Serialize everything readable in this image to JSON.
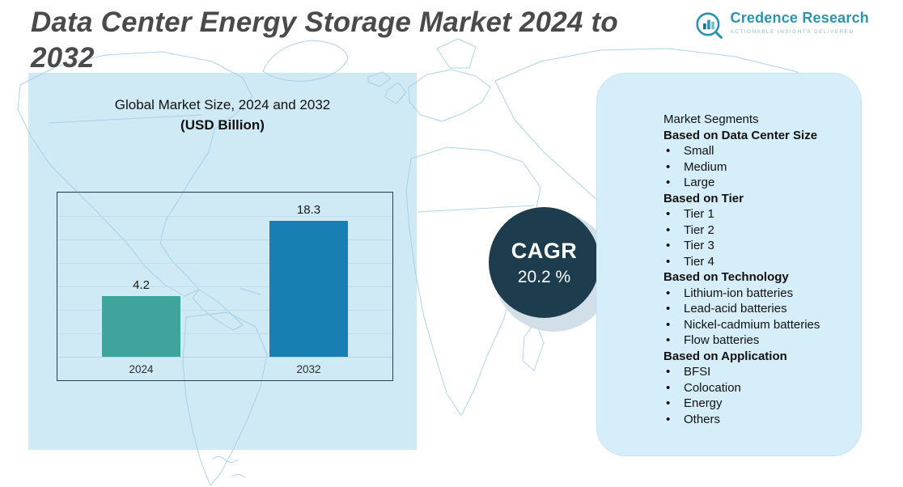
{
  "header": {
    "title": "Data Center Energy Storage Market 2024 to 2032"
  },
  "logo": {
    "name": "Credence Research",
    "tagline": "Actionable Insights Delivered"
  },
  "chart_panel": {
    "title": "Global Market Size, 2024 and 2032",
    "subtitle": "(USD Billion)"
  },
  "chart_data": {
    "type": "bar",
    "title": "Global Market Size, 2024 and 2032",
    "units": "USD Billion",
    "categories": [
      "2024",
      "2032"
    ],
    "values": [
      4.2,
      18.3
    ],
    "ylim": [
      0,
      20
    ],
    "grid": true,
    "legend": "none",
    "colors": [
      "#3fa39e",
      "#177fb2"
    ]
  },
  "cagr": {
    "label": "CAGR",
    "value": "20.2 %"
  },
  "segments": {
    "title": "Market Segments",
    "groups": [
      {
        "heading": "Based on Data Center Size",
        "items": [
          "Small",
          "Medium",
          "Large"
        ]
      },
      {
        "heading": "Based on Tier",
        "items": [
          "Tier 1",
          "Tier 2",
          "Tier 3",
          "Tier 4"
        ]
      },
      {
        "heading": "Based on Technology",
        "items": [
          "Lithium-ion batteries",
          "Lead-acid batteries",
          "Nickel-cadmium batteries",
          "Flow batteries"
        ]
      },
      {
        "heading": "Based on Application",
        "items": [
          "BFSI",
          "Colocation",
          "Energy",
          "Others"
        ]
      }
    ]
  },
  "colors": {
    "left_panel": "#cfe9f5",
    "right_panel": "#d6eef9",
    "cagr_circle": "#1d3d4e",
    "map_line": "#9fcde4",
    "title_text": "#4a4a4a",
    "logo_teal": "#2e93ad"
  }
}
